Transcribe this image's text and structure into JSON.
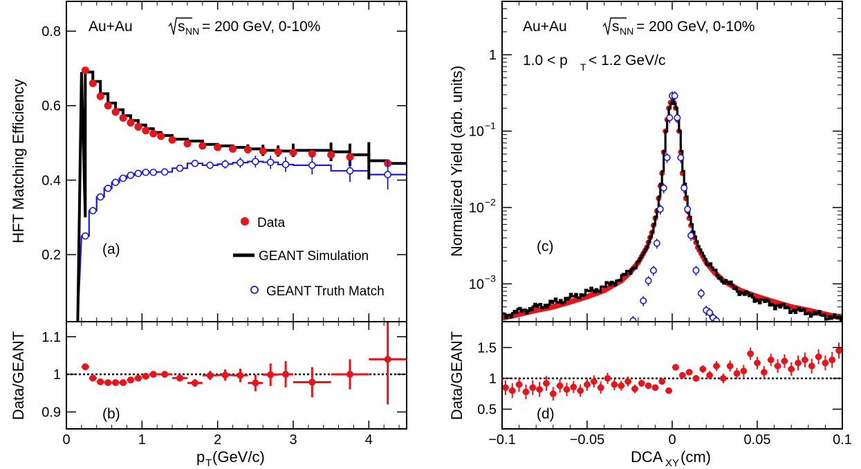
{
  "left": {
    "banner": {
      "pre": "Au+Au",
      "sqrt": "s",
      "sub": "NN",
      "post": "= 200 GeV, 0-10%"
    },
    "top_ylabel": "HFT Matching Efficiency",
    "bottom_ylabel": "Data/GEANT",
    "xlabel_main": "p",
    "xlabel_sub": "T",
    "xlabel_unit": " (GeV/c)",
    "label_top": "(a)",
    "label_bottom": "(b)",
    "legend": [
      {
        "key": "data",
        "label": "Data"
      },
      {
        "key": "sim",
        "label": "GEANT Simulation"
      },
      {
        "key": "truth",
        "label": "GEANT Truth Match"
      }
    ]
  },
  "right": {
    "banner": {
      "pre": "Au+Au",
      "sqrt": "s",
      "sub": "NN",
      "post": "= 200 GeV, 0-10%"
    },
    "cut": {
      "pre": "1.0 < p",
      "sub": "T",
      "post": " < 1.2 GeV/c"
    },
    "top_ylabel": "Normalized Yield (arb. units)",
    "bottom_ylabel": "Data/GEANT",
    "xlabel_main": "DCA",
    "xlabel_sub": "XY",
    "xlabel_unit": "(cm)",
    "label_top": "(c)",
    "label_bottom": "(d)"
  },
  "colors": {
    "data": "#e8141b",
    "sim": "#000000",
    "truth": "#1a1adb"
  },
  "chart_data": [
    {
      "id": "a",
      "type": "scatter",
      "xlim": [
        0,
        4.5
      ],
      "ylim": [
        0.02,
        0.88
      ],
      "xticks": [
        0,
        1,
        2,
        3,
        4
      ],
      "yticks": [
        0.2,
        0.4,
        0.6,
        0.8
      ],
      "ytick_labels": [
        "0.2",
        "0.4",
        "0.6",
        "0.8"
      ],
      "series": [
        {
          "name": "Data",
          "style": "markers",
          "color": "#e8141b",
          "x": [
            0.25,
            0.35,
            0.45,
            0.55,
            0.65,
            0.75,
            0.85,
            0.95,
            1.05,
            1.15,
            1.25,
            1.4,
            1.6,
            1.8,
            2.0,
            2.2,
            2.4,
            2.6,
            2.8,
            3.0,
            3.25,
            3.5,
            3.75,
            4.25
          ],
          "y": [
            0.695,
            0.66,
            0.625,
            0.6,
            0.583,
            0.567,
            0.554,
            0.543,
            0.533,
            0.525,
            0.518,
            0.508,
            0.498,
            0.492,
            0.488,
            0.484,
            0.482,
            0.478,
            0.476,
            0.474,
            0.471,
            0.468,
            0.462,
            0.445
          ]
        },
        {
          "name": "GEANT Simulation",
          "style": "step",
          "color": "#000000",
          "x": [
            0.15,
            0.25,
            0.35,
            0.45,
            0.55,
            0.65,
            0.75,
            0.85,
            0.95,
            1.05,
            1.15,
            1.25,
            1.4,
            1.6,
            1.8,
            2.0,
            2.2,
            2.4,
            2.6,
            2.8,
            3.0,
            3.25,
            3.5,
            3.75,
            4.0,
            4.25,
            4.5
          ],
          "y": [
            0.3,
            0.69,
            0.665,
            0.632,
            0.607,
            0.589,
            0.573,
            0.56,
            0.548,
            0.538,
            0.528,
            0.52,
            0.51,
            0.505,
            0.496,
            0.492,
            0.488,
            0.484,
            0.48,
            0.478,
            0.48,
            0.48,
            0.476,
            0.468,
            0.452,
            0.445,
            0.445
          ],
          "errors": [
            0,
            0,
            0,
            0,
            0,
            0,
            0,
            0,
            0,
            0,
            0,
            0,
            0,
            0,
            0,
            0,
            0,
            0.012,
            0.015,
            0.015,
            0.018,
            0,
            0.025,
            0.03,
            0.05,
            0,
            0
          ]
        },
        {
          "name": "GEANT Truth Match",
          "style": "open-markers",
          "color": "#1a1adb",
          "x": [
            0.25,
            0.35,
            0.45,
            0.55,
            0.65,
            0.75,
            0.85,
            0.95,
            1.05,
            1.15,
            1.3,
            1.5,
            1.7,
            1.9,
            2.1,
            2.3,
            2.5,
            2.7,
            2.9,
            3.25,
            3.75,
            4.25
          ],
          "y": [
            0.25,
            0.318,
            0.355,
            0.378,
            0.394,
            0.405,
            0.413,
            0.418,
            0.421,
            0.421,
            0.422,
            0.432,
            0.445,
            0.44,
            0.443,
            0.447,
            0.45,
            0.448,
            0.442,
            0.44,
            0.425,
            0.415
          ],
          "errors": [
            0.008,
            0.008,
            0.007,
            0.006,
            0.006,
            0.006,
            0.006,
            0.006,
            0.006,
            0.006,
            0.006,
            0.008,
            0.008,
            0.01,
            0.012,
            0.014,
            0.016,
            0.018,
            0.02,
            0.025,
            0.03,
            0.04
          ]
        }
      ]
    },
    {
      "id": "b",
      "type": "scatter",
      "xlim": [
        0,
        4.5
      ],
      "ylim": [
        0.855,
        1.14
      ],
      "xticks": [
        0,
        1,
        2,
        3,
        4
      ],
      "xtick_labels": [
        "0",
        "1",
        "2",
        "3",
        "4"
      ],
      "yticks": [
        0.9,
        1.0,
        1.1
      ],
      "ytick_labels": [
        "0.9",
        "1",
        "1.1"
      ],
      "reference_line": 1.0,
      "series": [
        {
          "name": "Data/GEANT",
          "color": "#e8141b",
          "x": [
            0.25,
            0.35,
            0.45,
            0.55,
            0.65,
            0.75,
            0.85,
            0.95,
            1.05,
            1.15,
            1.3,
            1.5,
            1.7,
            1.9,
            2.1,
            2.3,
            2.5,
            2.7,
            2.9,
            3.25,
            3.75,
            4.25
          ],
          "y": [
            1.02,
            0.99,
            0.98,
            0.978,
            0.978,
            0.978,
            0.985,
            0.99,
            0.995,
            1.0,
            1.0,
            0.99,
            0.977,
            0.997,
            0.998,
            0.997,
            0.977,
            0.999,
            1.0,
            0.979,
            1.0,
            1.04
          ],
          "xerr": [
            0.05,
            0.05,
            0.05,
            0.05,
            0.05,
            0.05,
            0.05,
            0.05,
            0.05,
            0.05,
            0.1,
            0.1,
            0.1,
            0.1,
            0.1,
            0.1,
            0.1,
            0.1,
            0.1,
            0.25,
            0.25,
            0.25
          ],
          "yerr": [
            0.004,
            0.004,
            0.004,
            0.004,
            0.004,
            0.004,
            0.004,
            0.004,
            0.004,
            0.004,
            0.006,
            0.008,
            0.01,
            0.012,
            0.015,
            0.018,
            0.022,
            0.03,
            0.035,
            0.04,
            0.04,
            0.12
          ]
        }
      ]
    },
    {
      "id": "c",
      "type": "line",
      "yscale": "log",
      "xlim": [
        -0.1,
        0.1
      ],
      "ylim": [
        0.00032,
        5
      ],
      "xticks": [
        -0.1,
        -0.05,
        0,
        0.05,
        0.1
      ],
      "yticks": [
        0.001,
        0.01,
        0.1,
        1
      ],
      "ytick_labels": [
        {
          "base": "10",
          "exp": "−3"
        },
        {
          "base": "10",
          "exp": "−2"
        },
        {
          "base": "10",
          "exp": "−1"
        },
        {
          "base": "1",
          "exp": ""
        }
      ],
      "series": [
        {
          "name": "Data",
          "color": "#e8141b",
          "x": [
            -0.099,
            -0.09,
            -0.08,
            -0.07,
            -0.06,
            -0.05,
            -0.04,
            -0.03,
            -0.025,
            -0.02,
            -0.015,
            -0.012,
            -0.009,
            -0.006,
            -0.004,
            -0.002,
            0,
            0.002,
            0.004,
            0.006,
            0.009,
            0.012,
            0.015,
            0.02,
            0.025,
            0.03,
            0.04,
            0.05,
            0.06,
            0.07,
            0.08,
            0.09,
            0.099
          ],
          "y": [
            0.00036,
            0.0004,
            0.00045,
            0.0005,
            0.00058,
            0.00068,
            0.00082,
            0.0011,
            0.0014,
            0.0019,
            0.003,
            0.0047,
            0.009,
            0.028,
            0.1,
            0.2,
            0.28,
            0.2,
            0.1,
            0.028,
            0.009,
            0.0047,
            0.003,
            0.0019,
            0.0014,
            0.0011,
            0.00082,
            0.00068,
            0.00058,
            0.0005,
            0.00045,
            0.0004,
            0.00036
          ]
        },
        {
          "name": "GEANT Simulation",
          "color": "#000000",
          "x": [
            -0.1,
            -0.09,
            -0.08,
            -0.07,
            -0.06,
            -0.05,
            -0.04,
            -0.03,
            -0.025,
            -0.02,
            -0.015,
            -0.012,
            -0.009,
            -0.006,
            -0.004,
            -0.002,
            0,
            0.002,
            0.004,
            0.006,
            0.009,
            0.012,
            0.015,
            0.02,
            0.025,
            0.03,
            0.04,
            0.05,
            0.06,
            0.07,
            0.08,
            0.09,
            0.1
          ],
          "y": [
            0.00038,
            0.00044,
            0.0005,
            0.00057,
            0.00066,
            0.00078,
            0.00092,
            0.0012,
            0.0015,
            0.002,
            0.0031,
            0.0048,
            0.0095,
            0.03,
            0.1,
            0.2,
            0.26,
            0.2,
            0.1,
            0.03,
            0.0095,
            0.0048,
            0.0031,
            0.0019,
            0.0014,
            0.0011,
            0.00078,
            0.00062,
            0.00053,
            0.00046,
            0.00042,
            0.00038,
            0.00034
          ]
        },
        {
          "name": "GEANT Truth Match",
          "color": "#1a1adb",
          "x": [
            -0.023,
            -0.017,
            -0.014,
            -0.011,
            -0.009,
            -0.007,
            -0.005,
            -0.003,
            -0.0015,
            0,
            0.0015,
            0.003,
            0.005,
            0.007,
            0.009,
            0.011,
            0.014,
            0.017,
            0.02,
            0.022,
            0.024,
            0.026
          ],
          "y": [
            0.00033,
            0.0006,
            0.0011,
            0.0015,
            0.0034,
            0.0095,
            0.018,
            0.045,
            0.15,
            0.29,
            0.29,
            0.15,
            0.045,
            0.018,
            0.0095,
            0.0043,
            0.0015,
            0.00075,
            0.00045,
            0.00042,
            0.00036,
            0.00033
          ]
        }
      ]
    },
    {
      "id": "d",
      "type": "scatter",
      "xlim": [
        -0.1,
        0.1
      ],
      "ylim": [
        0.18,
        1.92
      ],
      "xticks": [
        -0.1,
        -0.05,
        0,
        0.05,
        0.1
      ],
      "xtick_labels": [
        "−0.1",
        "−0.05",
        "0",
        "0.05",
        "0.1"
      ],
      "yticks": [
        0.5,
        1.0,
        1.5
      ],
      "ytick_labels": [
        "0.5",
        "1",
        "1.5"
      ],
      "reference_line": 1.0,
      "series": [
        {
          "name": "Data/GEANT",
          "color": "#e8141b",
          "x": [
            -0.098,
            -0.094,
            -0.09,
            -0.086,
            -0.082,
            -0.078,
            -0.074,
            -0.07,
            -0.066,
            -0.062,
            -0.058,
            -0.054,
            -0.05,
            -0.046,
            -0.042,
            -0.038,
            -0.034,
            -0.03,
            -0.026,
            -0.022,
            -0.018,
            -0.014,
            -0.01,
            -0.006,
            -0.002,
            0.002,
            0.006,
            0.01,
            0.014,
            0.018,
            0.022,
            0.026,
            0.03,
            0.034,
            0.038,
            0.042,
            0.046,
            0.05,
            0.054,
            0.058,
            0.062,
            0.066,
            0.07,
            0.074,
            0.078,
            0.082,
            0.086,
            0.09,
            0.094,
            0.098
          ],
          "y": [
            0.85,
            0.8,
            0.9,
            0.78,
            0.85,
            0.82,
            0.92,
            0.75,
            0.88,
            0.82,
            0.86,
            0.8,
            0.9,
            0.95,
            0.85,
            1.0,
            0.9,
            0.88,
            0.95,
            0.83,
            0.92,
            0.88,
            0.85,
            0.95,
            0.8,
            1.18,
            1.05,
            1.1,
            1.0,
            1.15,
            1.05,
            1.2,
            1.0,
            1.2,
            1.08,
            1.12,
            1.4,
            1.25,
            1.1,
            1.3,
            1.2,
            1.28,
            1.15,
            1.25,
            1.3,
            1.2,
            1.35,
            1.25,
            1.3,
            1.45
          ],
          "yerr": [
            0.12,
            0.12,
            0.12,
            0.12,
            0.12,
            0.12,
            0.12,
            0.11,
            0.11,
            0.11,
            0.1,
            0.1,
            0.1,
            0.1,
            0.1,
            0.09,
            0.09,
            0.08,
            0.08,
            0.07,
            0.06,
            0.05,
            0.04,
            0.03,
            0.02,
            0.02,
            0.03,
            0.04,
            0.05,
            0.06,
            0.07,
            0.08,
            0.08,
            0.09,
            0.09,
            0.1,
            0.1,
            0.1,
            0.1,
            0.1,
            0.11,
            0.11,
            0.11,
            0.12,
            0.12,
            0.12,
            0.12,
            0.12,
            0.13,
            0.13
          ]
        }
      ]
    }
  ]
}
